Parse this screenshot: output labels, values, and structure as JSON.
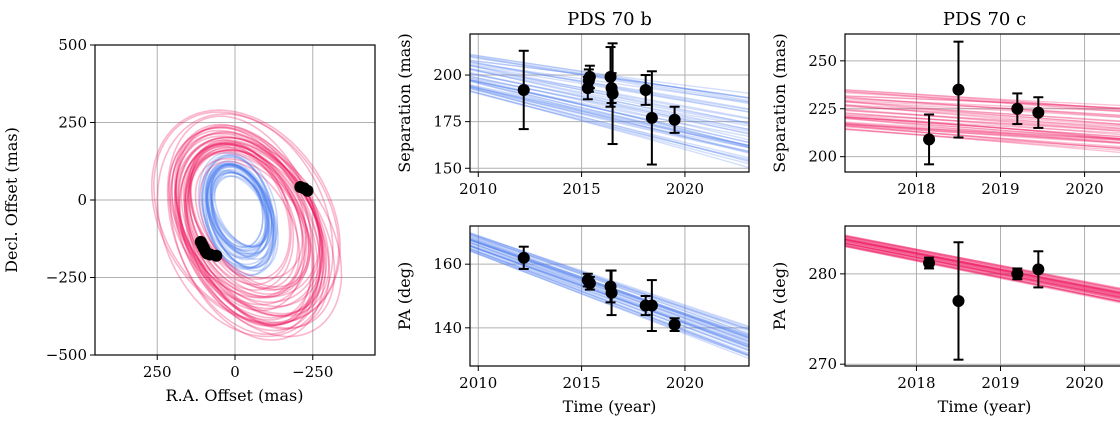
{
  "colors": {
    "b": "#4a7cf0",
    "c": "#f0105a",
    "points": "#000000"
  },
  "chart_data": [
    {
      "id": "orbit",
      "type": "scatter",
      "title": "",
      "xlabel": "R.A. Offset (mas)",
      "ylabel": "Decl. Offset (mas)",
      "xlim": [
        450,
        -450
      ],
      "ylim": [
        -500,
        500
      ],
      "xticks": [
        250,
        0,
        -250
      ],
      "xtick_labels": [
        "250",
        "0",
        "−250"
      ],
      "yticks": [
        500,
        250,
        0,
        -250,
        -500
      ],
      "ytick_labels": [
        "500",
        "250",
        "0",
        "−250",
        "−500"
      ],
      "grid": true,
      "orbits": [
        {
          "name": "",
          "color": "#4a7cf0",
          "a": 160,
          "ecc": 0.25,
          "inc_ratio": 0.62,
          "rot_deg": 70,
          "count": 28
        },
        {
          "name": "",
          "color": "#f0105a",
          "a": 300,
          "ecc": 0.3,
          "inc_ratio": 0.68,
          "rot_deg": 62,
          "count": 38
        }
      ],
      "points": [
        {
          "x": 110,
          "y": -135
        },
        {
          "x": 105,
          "y": -145
        },
        {
          "x": 100,
          "y": -155
        },
        {
          "x": 95,
          "y": -165
        },
        {
          "x": 90,
          "y": -172
        },
        {
          "x": 80,
          "y": -176
        },
        {
          "x": 60,
          "y": -180
        },
        {
          "x": -210,
          "y": 42
        },
        {
          "x": -222,
          "y": 38
        },
        {
          "x": -233,
          "y": 30
        }
      ]
    },
    {
      "id": "b-sep",
      "type": "line",
      "title": "PDS 70 b",
      "xlabel": "",
      "ylabel": "Separation (mas)",
      "xlim": [
        2009.6,
        2023.1
      ],
      "ylim": [
        148,
        222
      ],
      "xticks": [
        2010,
        2015,
        2020
      ],
      "xtick_labels": [
        "2010",
        "2015",
        "2020"
      ],
      "yticks": [
        150,
        175,
        200
      ],
      "ytick_labels": [
        "150",
        "175",
        "200"
      ],
      "grid": true,
      "series_color": "#4a7cf0",
      "model_band": {
        "x0": 2009.6,
        "x1": 2023.1,
        "start": [
          191,
          212
        ],
        "end": [
          148,
          196
        ],
        "count": 45
      },
      "points": [
        {
          "x": 2012.2,
          "y": 192,
          "err": 21
        },
        {
          "x": 2015.3,
          "y": 193,
          "err": 6
        },
        {
          "x": 2015.35,
          "y": 197,
          "err": 6
        },
        {
          "x": 2015.4,
          "y": 199,
          "err": 6
        },
        {
          "x": 2016.4,
          "y": 199,
          "err": 16
        },
        {
          "x": 2016.45,
          "y": 193,
          "err": 8
        },
        {
          "x": 2016.5,
          "y": 190,
          "err": 27
        },
        {
          "x": 2018.1,
          "y": 192,
          "err": 8
        },
        {
          "x": 2018.4,
          "y": 177,
          "err": 25
        },
        {
          "x": 2019.5,
          "y": 176,
          "err": 7
        }
      ]
    },
    {
      "id": "b-pa",
      "type": "line",
      "title": "",
      "xlabel": "Time (year)",
      "ylabel": "PA (deg)",
      "xlim": [
        2009.6,
        2023.1
      ],
      "ylim": [
        128,
        172
      ],
      "xticks": [
        2010,
        2015,
        2020
      ],
      "xtick_labels": [
        "2010",
        "2015",
        "2020"
      ],
      "yticks": [
        140,
        160
      ],
      "ytick_labels": [
        "140",
        "160"
      ],
      "grid": true,
      "series_color": "#4a7cf0",
      "model_band": {
        "x0": 2009.6,
        "x1": 2023.1,
        "start": [
          164,
          170
        ],
        "end": [
          130,
          141
        ],
        "count": 40
      },
      "points": [
        {
          "x": 2012.2,
          "y": 162,
          "err": 3.5
        },
        {
          "x": 2015.3,
          "y": 155,
          "err": 2
        },
        {
          "x": 2015.4,
          "y": 154,
          "err": 2
        },
        {
          "x": 2016.4,
          "y": 153,
          "err": 5
        },
        {
          "x": 2016.45,
          "y": 151,
          "err": 7
        },
        {
          "x": 2018.1,
          "y": 147,
          "err": 3
        },
        {
          "x": 2018.4,
          "y": 147,
          "err": 8
        },
        {
          "x": 2019.5,
          "y": 141,
          "err": 2
        }
      ]
    },
    {
      "id": "c-sep",
      "type": "line",
      "title": "PDS 70 c",
      "xlabel": "",
      "ylabel": "Separation (mas)",
      "xlim": [
        2017.15,
        2020.6
      ],
      "ylim": [
        192,
        264
      ],
      "xticks": [
        2018,
        2019,
        2020
      ],
      "xtick_labels": [
        "2018",
        "2019",
        "2020"
      ],
      "yticks": [
        200,
        225,
        250
      ],
      "ytick_labels": [
        "200",
        "225",
        "250"
      ],
      "grid": true,
      "series_color": "#f0105a",
      "model_band": {
        "x0": 2017.15,
        "x1": 2020.6,
        "start": [
          214,
          236
        ],
        "end": [
          200,
          230
        ],
        "count": 45
      },
      "points": [
        {
          "x": 2018.15,
          "y": 209,
          "err": 13
        },
        {
          "x": 2018.5,
          "y": 235,
          "err": 25
        },
        {
          "x": 2019.2,
          "y": 225,
          "err": 8
        },
        {
          "x": 2019.45,
          "y": 223,
          "err": 8
        }
      ]
    },
    {
      "id": "c-pa",
      "type": "line",
      "title": "",
      "xlabel": "Time (year)",
      "ylabel": "PA (deg)",
      "xlim": [
        2017.15,
        2020.6
      ],
      "ylim": [
        269.8,
        285.3
      ],
      "xticks": [
        2018,
        2019,
        2020
      ],
      "xtick_labels": [
        "2018",
        "2019",
        "2020"
      ],
      "yticks": [
        270,
        280
      ],
      "ytick_labels": [
        "270",
        "280"
      ],
      "grid": true,
      "series_color": "#f0105a",
      "model_band": {
        "x0": 2017.15,
        "x1": 2020.6,
        "start": [
          283.0,
          284.3
        ],
        "end": [
          276.4,
          278.2
        ],
        "count": 40
      },
      "points": [
        {
          "x": 2018.15,
          "y": 281.2,
          "err": 0.6
        },
        {
          "x": 2018.5,
          "y": 277,
          "err": 6.5
        },
        {
          "x": 2019.2,
          "y": 280,
          "err": 0.6
        },
        {
          "x": 2019.45,
          "y": 280.5,
          "err": 2
        }
      ]
    }
  ]
}
